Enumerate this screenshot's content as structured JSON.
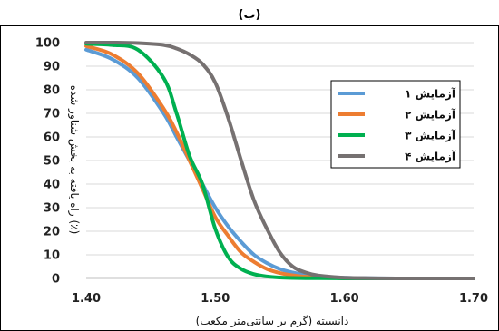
{
  "chart_data": {
    "type": "line",
    "title": "(ب)",
    "xlabel": "دانسیته (گرم بر سانتی‌متر مکعب)",
    "ylabel": "راه یافته به بخش شناور شده (٪)",
    "xlim": [
      1.4,
      1.7
    ],
    "ylim": [
      0,
      100
    ],
    "xticks": [
      "1.40",
      "1.50",
      "1.60",
      "1.70"
    ],
    "yticks": [
      "0",
      "10",
      "20",
      "30",
      "40",
      "50",
      "60",
      "70",
      "80",
      "90",
      "100"
    ],
    "grid": "horizontal",
    "legend_position": "top-right",
    "x": [
      1.4,
      1.42,
      1.44,
      1.46,
      1.47,
      1.48,
      1.49,
      1.5,
      1.51,
      1.52,
      1.53,
      1.54,
      1.55,
      1.56,
      1.57,
      1.58,
      1.6,
      1.62,
      1.64,
      1.67,
      1.7
    ],
    "series": [
      {
        "name": "آزمایش ۱",
        "color": "#5b9bd5",
        "values": [
          97,
          93,
          85,
          70,
          60,
          50,
          40,
          30,
          22,
          15.5,
          10,
          6.5,
          4,
          2.5,
          1.5,
          0.8,
          0.3,
          0.1,
          0,
          0,
          0
        ]
      },
      {
        "name": "آزمایش ۲",
        "color": "#ed7d31",
        "values": [
          98.5,
          95,
          87,
          72,
          62,
          50,
          38,
          26,
          18,
          11,
          7,
          4,
          2.3,
          1.3,
          0.7,
          0.4,
          0.1,
          0,
          0,
          0,
          0
        ]
      },
      {
        "name": "آزمایش ۳",
        "color": "#00b050",
        "values": [
          99.5,
          99,
          97,
          85,
          70,
          52,
          40,
          21,
          9,
          4,
          1.8,
          0.8,
          0.4,
          0.2,
          0.1,
          0.1,
          0,
          0,
          0,
          0,
          0
        ]
      },
      {
        "name": "آزمایش ۴",
        "color": "#767171",
        "values": [
          100,
          100,
          99.8,
          99,
          97.5,
          95,
          91,
          83,
          68,
          50,
          33,
          21,
          11,
          5,
          2.5,
          1.2,
          0.3,
          0.1,
          0,
          0,
          0
        ]
      }
    ]
  }
}
